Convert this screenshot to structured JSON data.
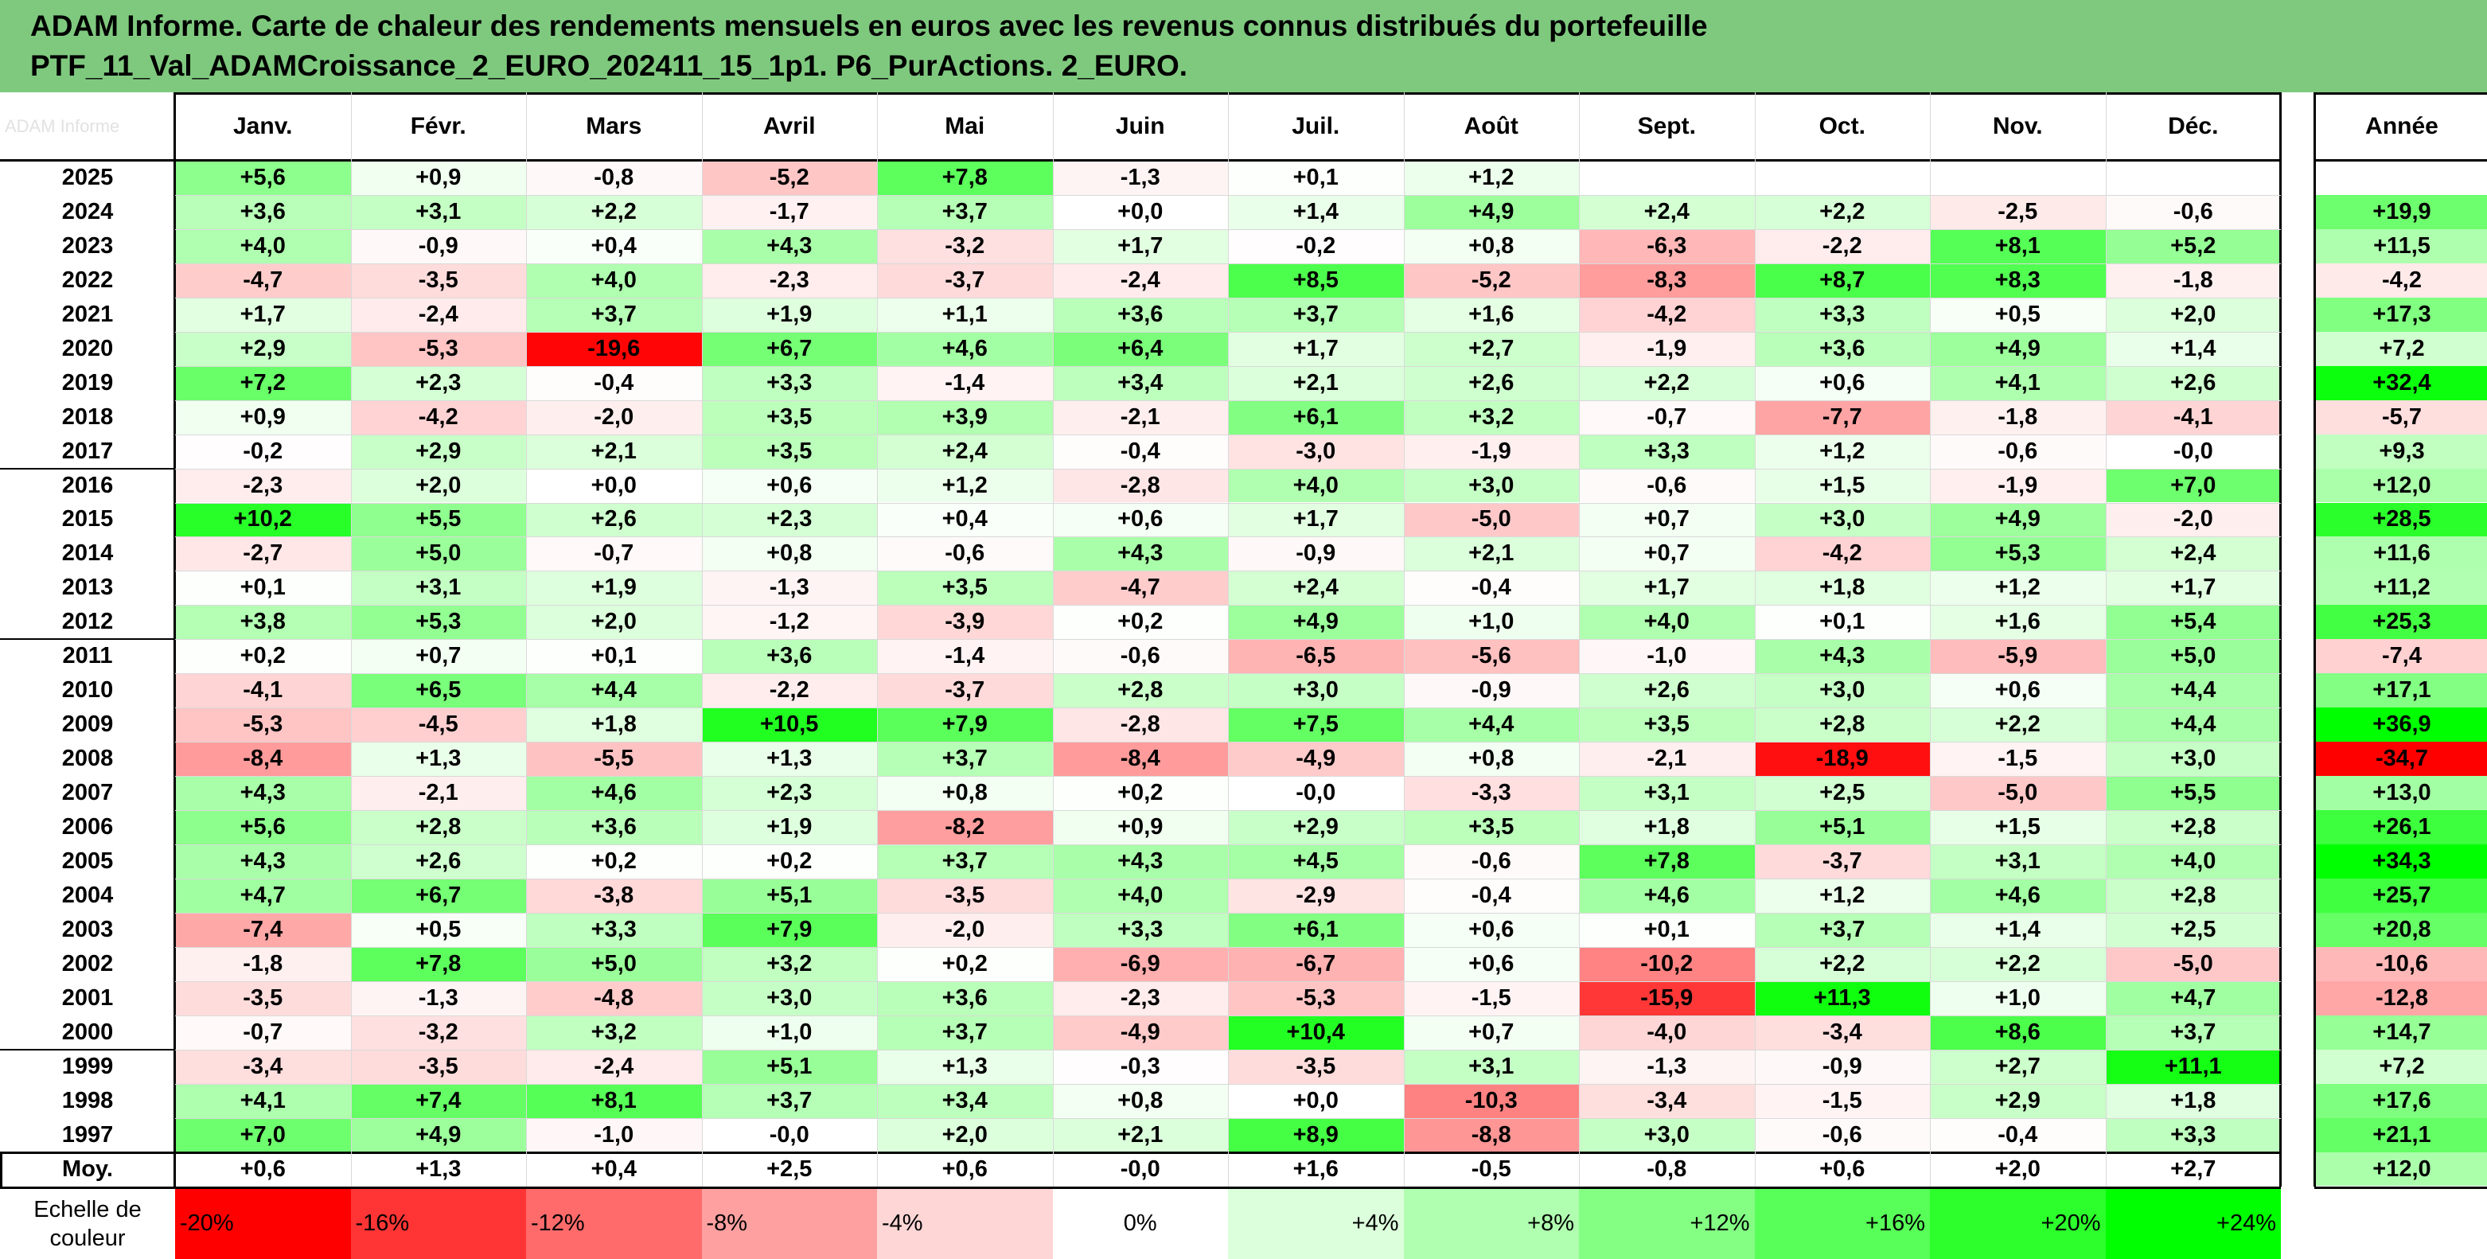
{
  "title": {
    "line1": "ADAM Informe. Carte de chaleur des rendements mensuels en euros avec les revenus connus distribués du portefeuille",
    "line2": "PTF_11_Val_ADAMCroissance_2_EURO_202411_15_1p1. P6_PurActions. 2_EURO."
  },
  "watermark": "ADAM Informe",
  "chart_data": {
    "type": "heatmap",
    "columns": [
      "Janv.",
      "Févr.",
      "Mars",
      "Avril",
      "Mai",
      "Juin",
      "Juil.",
      "Août",
      "Sept.",
      "Oct.",
      "Nov.",
      "Déc."
    ],
    "year_column": "Année",
    "rows": [
      {
        "year": "2025",
        "months": [
          "+5,6",
          "+0,9",
          "-0,8",
          "-5,2",
          "+7,8",
          "-1,3",
          "+0,1",
          "+1,2",
          "",
          "",
          "",
          ""
        ],
        "annual": ""
      },
      {
        "year": "2024",
        "months": [
          "+3,6",
          "+3,1",
          "+2,2",
          "-1,7",
          "+3,7",
          "+0,0",
          "+1,4",
          "+4,9",
          "+2,4",
          "+2,2",
          "-2,5",
          "-0,6"
        ],
        "annual": "+19,9"
      },
      {
        "year": "2023",
        "months": [
          "+4,0",
          "-0,9",
          "+0,4",
          "+4,3",
          "-3,2",
          "+1,7",
          "-0,2",
          "+0,8",
          "-6,3",
          "-2,2",
          "+8,1",
          "+5,2"
        ],
        "annual": "+11,5"
      },
      {
        "year": "2022",
        "months": [
          "-4,7",
          "-3,5",
          "+4,0",
          "-2,3",
          "-3,7",
          "-2,4",
          "+8,5",
          "-5,2",
          "-8,3",
          "+8,7",
          "+8,3",
          "-1,8"
        ],
        "annual": "-4,2"
      },
      {
        "year": "2021",
        "months": [
          "+1,7",
          "-2,4",
          "+3,7",
          "+1,9",
          "+1,1",
          "+3,6",
          "+3,7",
          "+1,6",
          "-4,2",
          "+3,3",
          "+0,5",
          "+2,0"
        ],
        "annual": "+17,3"
      },
      {
        "year": "2020",
        "months": [
          "+2,9",
          "-5,3",
          "-19,6",
          "+6,7",
          "+4,6",
          "+6,4",
          "+1,7",
          "+2,7",
          "-1,9",
          "+3,6",
          "+4,9",
          "+1,4"
        ],
        "annual": "+7,2"
      },
      {
        "year": "2019",
        "months": [
          "+7,2",
          "+2,3",
          "-0,4",
          "+3,3",
          "-1,4",
          "+3,4",
          "+2,1",
          "+2,6",
          "+2,2",
          "+0,6",
          "+4,1",
          "+2,6"
        ],
        "annual": "+32,4"
      },
      {
        "year": "2018",
        "months": [
          "+0,9",
          "-4,2",
          "-2,0",
          "+3,5",
          "+3,9",
          "-2,1",
          "+6,1",
          "+3,2",
          "-0,7",
          "-7,7",
          "-1,8",
          "-4,1"
        ],
        "annual": "-5,7"
      },
      {
        "year": "2017",
        "months": [
          "-0,2",
          "+2,9",
          "+2,1",
          "+3,5",
          "+2,4",
          "-0,4",
          "-3,0",
          "-1,9",
          "+3,3",
          "+1,2",
          "-0,6",
          "-0,0"
        ],
        "annual": "+9,3"
      },
      {
        "year": "2016",
        "months": [
          "-2,3",
          "+2,0",
          "+0,0",
          "+0,6",
          "+1,2",
          "-2,8",
          "+4,0",
          "+3,0",
          "-0,6",
          "+1,5",
          "-1,9",
          "+7,0"
        ],
        "annual": "+12,0"
      },
      {
        "year": "2015",
        "months": [
          "+10,2",
          "+5,5",
          "+2,6",
          "+2,3",
          "+0,4",
          "+0,6",
          "+1,7",
          "-5,0",
          "+0,7",
          "+3,0",
          "+4,9",
          "-2,0"
        ],
        "annual": "+28,5"
      },
      {
        "year": "2014",
        "months": [
          "-2,7",
          "+5,0",
          "-0,7",
          "+0,8",
          "-0,6",
          "+4,3",
          "-0,9",
          "+2,1",
          "+0,7",
          "-4,2",
          "+5,3",
          "+2,4"
        ],
        "annual": "+11,6"
      },
      {
        "year": "2013",
        "months": [
          "+0,1",
          "+3,1",
          "+1,9",
          "-1,3",
          "+3,5",
          "-4,7",
          "+2,4",
          "-0,4",
          "+1,7",
          "+1,8",
          "+1,2",
          "+1,7"
        ],
        "annual": "+11,2"
      },
      {
        "year": "2012",
        "months": [
          "+3,8",
          "+5,3",
          "+2,0",
          "-1,2",
          "-3,9",
          "+0,2",
          "+4,9",
          "+1,0",
          "+4,0",
          "+0,1",
          "+1,6",
          "+5,4"
        ],
        "annual": "+25,3"
      },
      {
        "year": "2011",
        "months": [
          "+0,2",
          "+0,7",
          "+0,1",
          "+3,6",
          "-1,4",
          "-0,6",
          "-6,5",
          "-5,6",
          "-1,0",
          "+4,3",
          "-5,9",
          "+5,0"
        ],
        "annual": "-7,4"
      },
      {
        "year": "2010",
        "months": [
          "-4,1",
          "+6,5",
          "+4,4",
          "-2,2",
          "-3,7",
          "+2,8",
          "+3,0",
          "-0,9",
          "+2,6",
          "+3,0",
          "+0,6",
          "+4,4"
        ],
        "annual": "+17,1"
      },
      {
        "year": "2009",
        "months": [
          "-5,3",
          "-4,5",
          "+1,8",
          "+10,5",
          "+7,9",
          "-2,8",
          "+7,5",
          "+4,4",
          "+3,5",
          "+2,8",
          "+2,2",
          "+4,4"
        ],
        "annual": "+36,9"
      },
      {
        "year": "2008",
        "months": [
          "-8,4",
          "+1,3",
          "-5,5",
          "+1,3",
          "+3,7",
          "-8,4",
          "-4,9",
          "+0,8",
          "-2,1",
          "-18,9",
          "-1,5",
          "+3,0"
        ],
        "annual": "-34,7"
      },
      {
        "year": "2007",
        "months": [
          "+4,3",
          "-2,1",
          "+4,6",
          "+2,3",
          "+0,8",
          "+0,2",
          "-0,0",
          "-3,3",
          "+3,1",
          "+2,5",
          "-5,0",
          "+5,5"
        ],
        "annual": "+13,0"
      },
      {
        "year": "2006",
        "months": [
          "+5,6",
          "+2,8",
          "+3,6",
          "+1,9",
          "-8,2",
          "+0,9",
          "+2,9",
          "+3,5",
          "+1,8",
          "+5,1",
          "+1,5",
          "+2,8"
        ],
        "annual": "+26,1"
      },
      {
        "year": "2005",
        "months": [
          "+4,3",
          "+2,6",
          "+0,2",
          "+0,2",
          "+3,7",
          "+4,3",
          "+4,5",
          "-0,6",
          "+7,8",
          "-3,7",
          "+3,1",
          "+4,0"
        ],
        "annual": "+34,3"
      },
      {
        "year": "2004",
        "months": [
          "+4,7",
          "+6,7",
          "-3,8",
          "+5,1",
          "-3,5",
          "+4,0",
          "-2,9",
          "-0,4",
          "+4,6",
          "+1,2",
          "+4,6",
          "+2,8"
        ],
        "annual": "+25,7"
      },
      {
        "year": "2003",
        "months": [
          "-7,4",
          "+0,5",
          "+3,3",
          "+7,9",
          "-2,0",
          "+3,3",
          "+6,1",
          "+0,6",
          "+0,1",
          "+3,7",
          "+1,4",
          "+2,5"
        ],
        "annual": "+20,8"
      },
      {
        "year": "2002",
        "months": [
          "-1,8",
          "+7,8",
          "+5,0",
          "+3,2",
          "+0,2",
          "-6,9",
          "-6,7",
          "+0,6",
          "-10,2",
          "+2,2",
          "+2,2",
          "-5,0"
        ],
        "annual": "-10,6"
      },
      {
        "year": "2001",
        "months": [
          "-3,5",
          "-1,3",
          "-4,8",
          "+3,0",
          "+3,6",
          "-2,3",
          "-5,3",
          "-1,5",
          "-15,9",
          "+11,3",
          "+1,0",
          "+4,7"
        ],
        "annual": "-12,8"
      },
      {
        "year": "2000",
        "months": [
          "-0,7",
          "-3,2",
          "+3,2",
          "+1,0",
          "+3,7",
          "-4,9",
          "+10,4",
          "+0,7",
          "-4,0",
          "-3,4",
          "+8,6",
          "+3,7"
        ],
        "annual": "+14,7"
      },
      {
        "year": "1999",
        "months": [
          "-3,4",
          "-3,5",
          "-2,4",
          "+5,1",
          "+1,3",
          "-0,3",
          "-3,5",
          "+3,1",
          "-1,3",
          "-0,9",
          "+2,7",
          "+11,1"
        ],
        "annual": "+7,2"
      },
      {
        "year": "1998",
        "months": [
          "+4,1",
          "+7,4",
          "+8,1",
          "+3,7",
          "+3,4",
          "+0,8",
          "+0,0",
          "-10,3",
          "-3,4",
          "-1,5",
          "+2,9",
          "+1,8"
        ],
        "annual": "+17,6"
      },
      {
        "year": "1997",
        "months": [
          "+7,0",
          "+4,9",
          "-1,0",
          "-0,0",
          "+2,0",
          "+2,1",
          "+8,9",
          "-8,8",
          "+3,0",
          "-0,6",
          "-0,4",
          "+3,3"
        ],
        "annual": "+21,1"
      }
    ],
    "average": {
      "label": "Moy.",
      "months": [
        "+0,6",
        "+1,3",
        "+0,4",
        "+2,5",
        "+0,6",
        "-0,0",
        "+1,6",
        "-0,5",
        "-0,8",
        "+0,6",
        "+2,0",
        "+2,7"
      ],
      "annual": "+12,0"
    },
    "scale": {
      "label_line1": "Echelle de",
      "label_line2": "couleur",
      "stops": [
        "-20%",
        "-16%",
        "-12%",
        "-8%",
        "-4%",
        "0%",
        "+4%",
        "+8%",
        "+12%",
        "+16%",
        "+20%",
        "+24%"
      ]
    }
  }
}
